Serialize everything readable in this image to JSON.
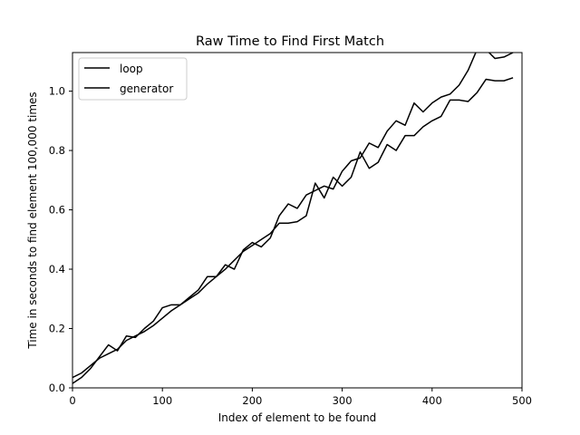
{
  "chart_data": {
    "type": "line",
    "title": "Raw Time to Find First Match",
    "xlabel": "Index of element to be found",
    "ylabel": "Time in seconds to find element  100,000 times",
    "xlim": [
      0,
      500
    ],
    "ylim": [
      0,
      1.13
    ],
    "xticks": [
      0,
      100,
      200,
      300,
      400,
      500
    ],
    "yticks": [
      0.0,
      0.2,
      0.4,
      0.6,
      0.8,
      1.0
    ],
    "xtick_labels": [
      "0",
      "100",
      "200",
      "300",
      "400",
      "500"
    ],
    "ytick_labels": [
      "0.0",
      "0.2",
      "0.4",
      "0.6",
      "0.8",
      "1.0"
    ],
    "grid": false,
    "legend_position": "top-left",
    "line_color": "#000000",
    "x": [
      0,
      10,
      20,
      30,
      40,
      50,
      60,
      70,
      80,
      90,
      100,
      110,
      120,
      130,
      140,
      150,
      160,
      170,
      180,
      190,
      200,
      210,
      220,
      230,
      240,
      250,
      260,
      270,
      280,
      290,
      300,
      310,
      320,
      330,
      340,
      350,
      360,
      370,
      380,
      390,
      400,
      410,
      420,
      430,
      440,
      450,
      460,
      470,
      480,
      490
    ],
    "series": [
      {
        "name": "loop",
        "values": [
          0.035,
          0.05,
          0.075,
          0.1,
          0.115,
          0.13,
          0.16,
          0.175,
          0.19,
          0.21,
          0.235,
          0.26,
          0.28,
          0.3,
          0.32,
          0.35,
          0.375,
          0.4,
          0.43,
          0.46,
          0.48,
          0.5,
          0.52,
          0.555,
          0.555,
          0.56,
          0.58,
          0.69,
          0.64,
          0.71,
          0.68,
          0.71,
          0.795,
          0.74,
          0.76,
          0.82,
          0.8,
          0.85,
          0.85,
          0.88,
          0.9,
          0.915,
          0.97,
          0.97,
          0.965,
          0.995,
          1.04,
          1.035,
          1.035,
          1.045
        ]
      },
      {
        "name": "generator",
        "values": [
          0.015,
          0.035,
          0.065,
          0.105,
          0.145,
          0.125,
          0.175,
          0.17,
          0.2,
          0.225,
          0.27,
          0.28,
          0.28,
          0.305,
          0.33,
          0.375,
          0.375,
          0.415,
          0.4,
          0.465,
          0.49,
          0.475,
          0.505,
          0.58,
          0.62,
          0.605,
          0.65,
          0.665,
          0.68,
          0.67,
          0.73,
          0.765,
          0.775,
          0.825,
          0.81,
          0.865,
          0.9,
          0.885,
          0.96,
          0.93,
          0.96,
          0.98,
          0.99,
          1.02,
          1.07,
          1.14,
          1.14,
          1.11,
          1.115,
          1.13
        ]
      }
    ]
  }
}
